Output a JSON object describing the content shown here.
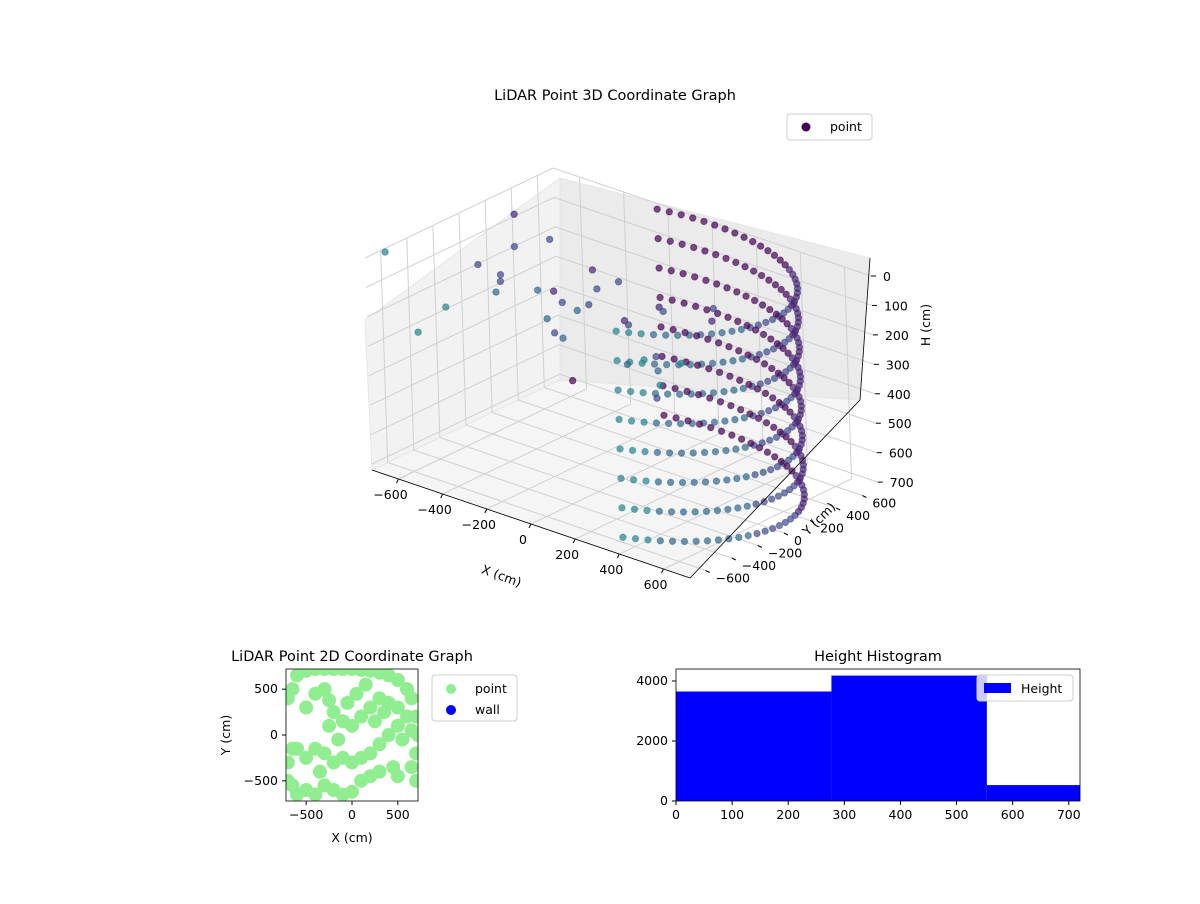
{
  "chart_data": [
    {
      "type": "scatter",
      "title": "LiDAR Point 3D Coordinate Graph",
      "xlabel": "X (cm)",
      "ylabel": "Y (cm)",
      "zlabel": "H (cm)",
      "xlim": [
        -720,
        720
      ],
      "ylim": [
        -720,
        720
      ],
      "zlim": [
        720,
        0
      ],
      "x_ticks": [
        -600,
        -400,
        -200,
        0,
        200,
        400,
        600
      ],
      "y_ticks": [
        -600,
        -400,
        -200,
        0,
        200,
        400,
        600
      ],
      "z_ticks": [
        0,
        100,
        200,
        300,
        400,
        500,
        600,
        700
      ],
      "grid": true,
      "legend_placement": "top-right",
      "series": [
        {
          "name": "point",
          "color": "#440154",
          "ring": {
            "radius": 700,
            "theta_range_deg": [
              -60,
              110
            ],
            "heights": [
              0,
              100,
              200,
              300,
              400,
              500,
              600,
              700
            ]
          },
          "points": [
            [
              -650,
              300,
              50
            ],
            [
              -520,
              80,
              80
            ],
            [
              -480,
              -100,
              150
            ],
            [
              -400,
              150,
              40
            ],
            [
              -300,
              300,
              150
            ],
            [
              -250,
              -200,
              100
            ],
            [
              -200,
              100,
              200
            ],
            [
              -150,
              -300,
              150
            ],
            [
              -100,
              200,
              250
            ],
            [
              -50,
              -350,
              180
            ],
            [
              0,
              300,
              200
            ],
            [
              50,
              -400,
              50
            ],
            [
              100,
              100,
              300
            ],
            [
              150,
              -200,
              250
            ],
            [
              200,
              0,
              100
            ],
            [
              250,
              -150,
              350
            ],
            [
              300,
              200,
              150
            ],
            [
              350,
              -300,
              200
            ],
            [
              400,
              50,
              50
            ],
            [
              -350,
              -350,
              100
            ],
            [
              -450,
              250,
              250
            ],
            [
              -550,
              -150,
              100
            ],
            [
              -600,
              100,
              200
            ],
            [
              -300,
              0,
              300
            ],
            [
              -200,
              -100,
              150
            ],
            [
              -100,
              0,
              100
            ],
            [
              0,
              0,
              50
            ],
            [
              100,
              -100,
              150
            ],
            [
              -700,
              -600,
              0
            ],
            [
              -650,
              700,
              700
            ],
            [
              700,
              -700,
              0
            ],
            [
              600,
              -700,
              100
            ],
            [
              500,
              -650,
              50
            ],
            [
              -500,
              -700,
              200
            ],
            [
              -400,
              -650,
              100
            ]
          ]
        }
      ]
    },
    {
      "type": "scatter",
      "title": "LiDAR Point 2D Coordinate Graph",
      "xlabel": "X (cm)",
      "ylabel": "Y (cm)",
      "xlim": [
        -720,
        720
      ],
      "ylim": [
        -720,
        720
      ],
      "x_ticks": [
        -500,
        0,
        500
      ],
      "y_ticks": [
        -500,
        0,
        500
      ],
      "legend_placement": "outside-right",
      "series": [
        {
          "name": "point",
          "color": "#90ee90",
          "points": [
            [
              -700,
              400
            ],
            [
              -650,
              500
            ],
            [
              -600,
              650
            ],
            [
              -500,
              700
            ],
            [
              -400,
              720
            ],
            [
              -300,
              720
            ],
            [
              -200,
              720
            ],
            [
              -100,
              720
            ],
            [
              0,
              720
            ],
            [
              100,
              710
            ],
            [
              200,
              700
            ],
            [
              300,
              680
            ],
            [
              400,
              650
            ],
            [
              500,
              600
            ],
            [
              600,
              500
            ],
            [
              650,
              400
            ],
            [
              700,
              200
            ],
            [
              720,
              0
            ],
            [
              700,
              -200
            ],
            [
              650,
              -350
            ],
            [
              -500,
              300
            ],
            [
              -400,
              450
            ],
            [
              -300,
              500
            ],
            [
              -250,
              380
            ],
            [
              -200,
              250
            ],
            [
              -100,
              150
            ],
            [
              0,
              100
            ],
            [
              100,
              200
            ],
            [
              200,
              300
            ],
            [
              300,
              400
            ],
            [
              400,
              350
            ],
            [
              500,
              300
            ],
            [
              600,
              200
            ],
            [
              500,
              100
            ],
            [
              400,
              0
            ],
            [
              300,
              -100
            ],
            [
              200,
              -200
            ],
            [
              100,
              -250
            ],
            [
              0,
              -300
            ],
            [
              -100,
              -250
            ],
            [
              -200,
              -300
            ],
            [
              -300,
              -200
            ],
            [
              -400,
              -150
            ],
            [
              -500,
              -250
            ],
            [
              -600,
              -150
            ],
            [
              -700,
              -300
            ],
            [
              -650,
              -550
            ],
            [
              -600,
              -650
            ],
            [
              -500,
              -600
            ],
            [
              -400,
              -650
            ],
            [
              -300,
              -550
            ],
            [
              -200,
              -600
            ],
            [
              -100,
              -650
            ],
            [
              0,
              -620
            ],
            [
              100,
              -500
            ],
            [
              200,
              -450
            ],
            [
              300,
              -400
            ],
            [
              450,
              -350
            ],
            [
              500,
              -450
            ],
            [
              700,
              -500
            ],
            [
              -700,
              -500
            ],
            [
              -650,
              -150
            ],
            [
              -250,
              100
            ],
            [
              -150,
              -50
            ],
            [
              50,
              450
            ],
            [
              150,
              550
            ],
            [
              250,
              150
            ],
            [
              350,
              250
            ],
            [
              550,
              -50
            ],
            [
              650,
              50
            ],
            [
              -50,
              350
            ],
            [
              -350,
              -400
            ]
          ]
        },
        {
          "name": "wall",
          "color": "#0000ff",
          "points": []
        }
      ]
    },
    {
      "type": "bar",
      "title": "Height Histogram",
      "xlabel": "",
      "ylabel": "",
      "xlim": [
        0,
        720
      ],
      "ylim": [
        0,
        4400
      ],
      "x_ticks": [
        0,
        100,
        200,
        300,
        400,
        500,
        600,
        700
      ],
      "y_ticks": [
        0,
        2000,
        4000
      ],
      "legend_placement": "top-right",
      "series": [
        {
          "name": "Height",
          "color": "#0000ff",
          "bins": [
            [
              0,
              277
            ],
            [
              277,
              554
            ],
            [
              554,
              720
            ]
          ],
          "values": [
            3650,
            4180,
            530
          ]
        }
      ]
    }
  ]
}
